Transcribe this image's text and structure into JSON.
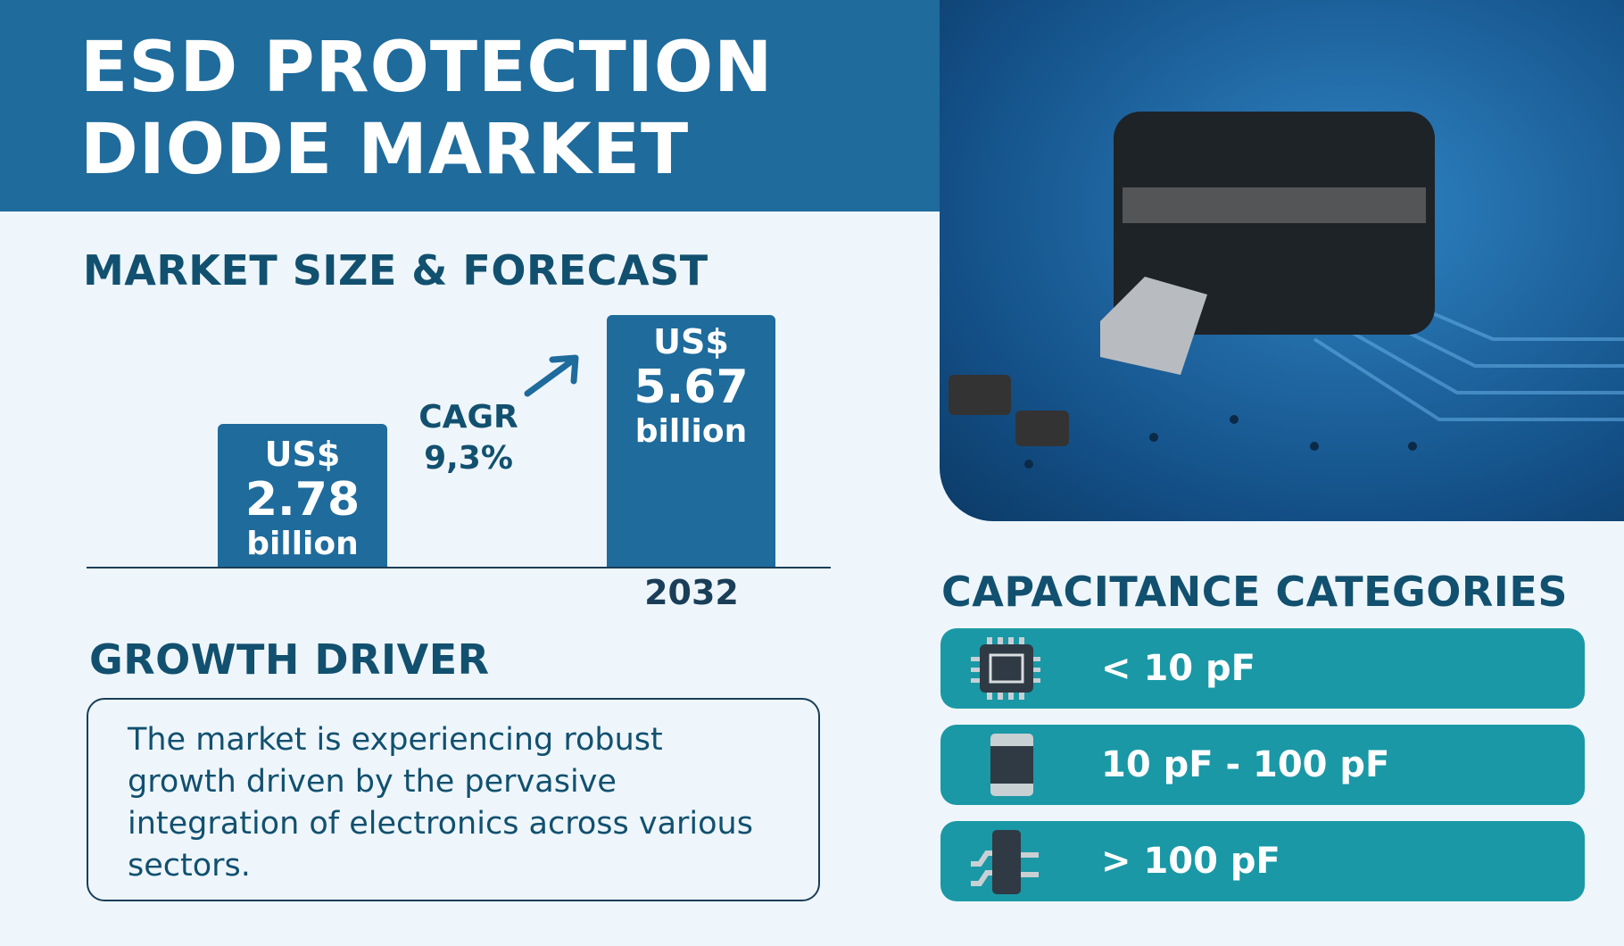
{
  "header": {
    "title_line1": "ESD PROTECTION",
    "title_line2": "DIODE MARKET"
  },
  "market": {
    "heading": "MARKET SIZE & FORECAST",
    "bars": [
      {
        "currency": "US$",
        "value": "2.78",
        "unit": "billion"
      },
      {
        "currency": "US$",
        "value": "5.67",
        "unit": "billion",
        "year": "2032"
      }
    ],
    "cagr_label": "CAGR",
    "cagr_value": "9,3%"
  },
  "growth": {
    "heading": "GROWTH DRIVER",
    "text": "The market is experiencing robust growth driven by the pervasive integration of electronics across various sectors."
  },
  "capacitance": {
    "heading": "CAPACITANCE CATEGORIES",
    "items": [
      {
        "label": "< 10 pF",
        "icon": "chip-icon"
      },
      {
        "label": "10 pF - 100 pF",
        "icon": "smd-capacitor-icon"
      },
      {
        "label": "> 100 pF",
        "icon": "diode-package-icon"
      }
    ]
  },
  "colors": {
    "header": "#1e6b9c",
    "pill": "#1a98a6",
    "heading": "#12506f",
    "background": "#eef6fb"
  }
}
